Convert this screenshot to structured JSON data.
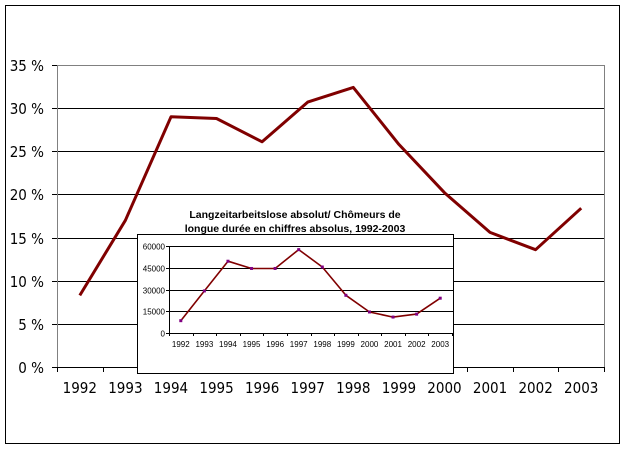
{
  "chart_data": [
    {
      "type": "line",
      "title": "",
      "xlabel": "",
      "ylabel": "",
      "categories": [
        "1992",
        "1993",
        "1994",
        "1995",
        "1996",
        "1997",
        "1998",
        "1999",
        "2000",
        "2001",
        "2002",
        "2003"
      ],
      "values": [
        8.3,
        17.0,
        29.0,
        28.8,
        26.1,
        30.7,
        32.4,
        25.8,
        20.2,
        15.6,
        13.6,
        18.4
      ],
      "ylim": [
        0,
        35
      ],
      "yticks": [
        0,
        5,
        10,
        15,
        20,
        25,
        30,
        35
      ],
      "ytick_labels": [
        "0 %",
        "5 %",
        "10 %",
        "15 %",
        "20 %",
        "25 %",
        "30 %",
        "35 %"
      ],
      "grid": true,
      "line_color": "#800000"
    },
    {
      "type": "line",
      "title": "Langzeitarbeitslose absolut/ Chômeurs de longue  durée en chiffres absolus, 1992-2003",
      "title_lines": [
        "Langzeitarbeitslose absolut/ Chômeurs de",
        "longue  durée en chiffres absolus, 1992-2003"
      ],
      "xlabel": "",
      "ylabel": "",
      "categories": [
        "1992",
        "1993",
        "1994",
        "1995",
        "1996",
        "1997",
        "1998",
        "1999",
        "2000",
        "2001",
        "2002",
        "2003"
      ],
      "values": [
        8500,
        29000,
        49500,
        44500,
        44500,
        57500,
        45500,
        26000,
        14500,
        11000,
        13000,
        24000
      ],
      "ylim": [
        0,
        60000
      ],
      "yticks": [
        0,
        15000,
        30000,
        45000,
        60000
      ],
      "ytick_labels": [
        "0",
        "15000",
        "30000",
        "45000",
        "60000"
      ],
      "grid": true,
      "line_color": "#800000",
      "marker_color": "#800080"
    }
  ]
}
